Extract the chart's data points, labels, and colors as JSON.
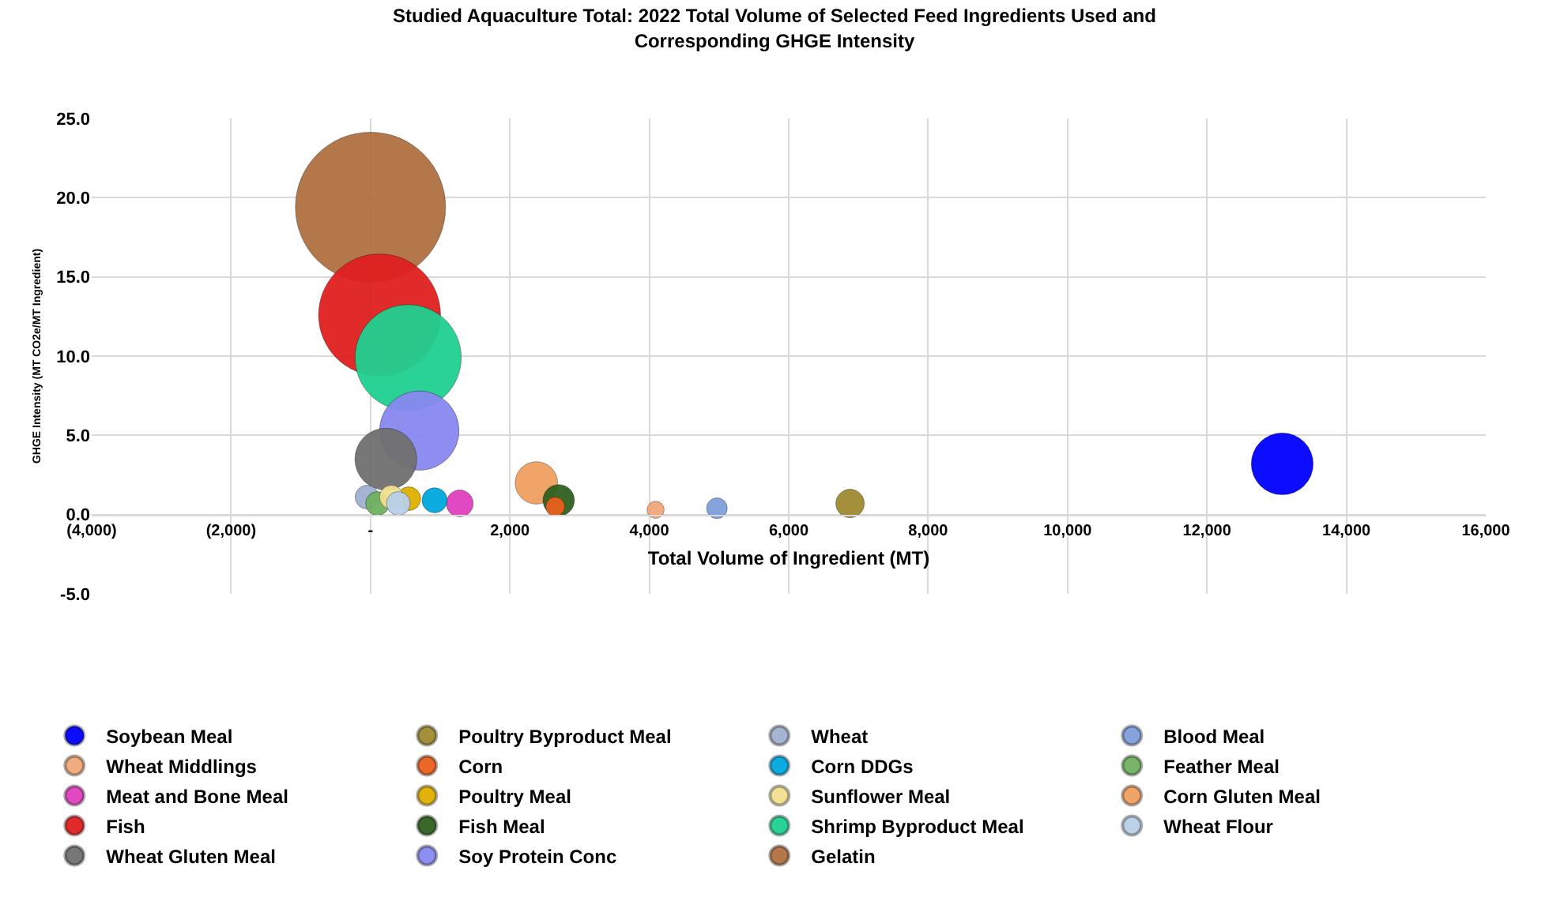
{
  "chart_data": {
    "type": "bubble",
    "title": "Studied Aquaculture Total: 2022 Total Volume of Selected Feed Ingredients Used and Corresponding GHGE Intensity",
    "xlabel": "Total Volume of Ingredient (MT)",
    "ylabel": "GHGE Intensity (MT CO2e/MT Ingredient)",
    "xlim": [
      -4000,
      16000
    ],
    "xticks": [
      {
        "value": -4000,
        "label": "(4,000)"
      },
      {
        "value": -2000,
        "label": "(2,000)"
      },
      {
        "value": 0,
        "label": "-"
      },
      {
        "value": 2000,
        "label": "2,000"
      },
      {
        "value": 4000,
        "label": "4,000"
      },
      {
        "value": 6000,
        "label": "6,000"
      },
      {
        "value": 8000,
        "label": "8,000"
      },
      {
        "value": 10000,
        "label": "10,000"
      },
      {
        "value": 12000,
        "label": "12,000"
      },
      {
        "value": 14000,
        "label": "14,000"
      },
      {
        "value": 16000,
        "label": "16,000"
      }
    ],
    "ylim": [
      -5,
      25
    ],
    "yticks": [
      {
        "value": -5,
        "label": "-5.0"
      },
      {
        "value": 0,
        "label": "0.0"
      },
      {
        "value": 5,
        "label": "5.0"
      },
      {
        "value": 10,
        "label": "10.0"
      },
      {
        "value": 15,
        "label": "15.0"
      },
      {
        "value": 20,
        "label": "20.0"
      },
      {
        "value": 25,
        "label": "25.0"
      }
    ],
    "grid": true,
    "legend": "bottom",
    "marker": "circle",
    "series": [
      {
        "name": "Soybean Meal",
        "color": "#0000ff",
        "x": [
          13080
        ],
        "values": [
          3.2
        ],
        "sizes": [
          0.17
        ]
      },
      {
        "name": "Poultry Byproduct Meal",
        "color": "#a08a30",
        "x": [
          6880
        ],
        "values": [
          0.7
        ],
        "sizes": [
          0.036
        ]
      },
      {
        "name": "Wheat",
        "color": "#a0b0d0",
        "x": [
          -50
        ],
        "values": [
          1.1
        ],
        "sizes": [
          0.025
        ]
      },
      {
        "name": "Blood Meal",
        "color": "#7f9fdc",
        "x": [
          4970
        ],
        "values": [
          0.4
        ],
        "sizes": [
          0.019
        ]
      },
      {
        "name": "Wheat Middlings",
        "color": "#f0a878",
        "x": [
          4090
        ],
        "values": [
          0.3
        ],
        "sizes": [
          0.013
        ]
      },
      {
        "name": "Corn",
        "color": "#e8601c",
        "x": [
          2650
        ],
        "values": [
          0.5
        ],
        "sizes": [
          0.016
        ]
      },
      {
        "name": "Corn DDGs",
        "color": "#00a8e0",
        "x": [
          920
        ],
        "values": [
          0.9
        ],
        "sizes": [
          0.028
        ]
      },
      {
        "name": "Feather Meal",
        "color": "#70b060",
        "x": [
          100
        ],
        "values": [
          0.7
        ],
        "sizes": [
          0.025
        ]
      },
      {
        "name": "Meat and Bone Meal",
        "color": "#e040c0",
        "x": [
          1280
        ],
        "values": [
          0.7
        ],
        "sizes": [
          0.032
        ]
      },
      {
        "name": "Poultry Meal",
        "color": "#e0b000",
        "x": [
          550
        ],
        "values": [
          1.0
        ],
        "sizes": [
          0.025
        ]
      },
      {
        "name": "Sunflower Meal",
        "color": "#f0e090",
        "x": [
          300
        ],
        "values": [
          1.1
        ],
        "sizes": [
          0.025
        ]
      },
      {
        "name": "Corn Gluten Meal",
        "color": "#f0a060",
        "x": [
          2380
        ],
        "values": [
          2.0
        ],
        "sizes": [
          0.08
        ]
      },
      {
        "name": "Fish",
        "color": "#e02020",
        "x": [
          130
        ],
        "values": [
          12.6
        ],
        "sizes": [
          0.66
        ]
      },
      {
        "name": "Fish Meal",
        "color": "#306020",
        "x": [
          2700
        ],
        "values": [
          0.9
        ],
        "sizes": [
          0.044
        ]
      },
      {
        "name": "Shrimp Byproduct Meal",
        "color": "#20d090",
        "x": [
          540
        ],
        "values": [
          9.9
        ],
        "sizes": [
          0.5
        ]
      },
      {
        "name": "Wheat Flour",
        "color": "#b8d0e8",
        "x": [
          400
        ],
        "values": [
          0.7
        ],
        "sizes": [
          0.025
        ]
      },
      {
        "name": "Wheat Gluten Meal",
        "color": "#707070",
        "x": [
          220
        ],
        "values": [
          3.5
        ],
        "sizes": [
          0.17
        ]
      },
      {
        "name": "Soy Protein Conc",
        "color": "#8888f0",
        "x": [
          700
        ],
        "values": [
          5.3
        ],
        "sizes": [
          0.28
        ]
      },
      {
        "name": "Gelatin",
        "color": "#b07040",
        "x": [
          0
        ],
        "values": [
          19.4
        ],
        "sizes": [
          1
        ]
      }
    ]
  }
}
